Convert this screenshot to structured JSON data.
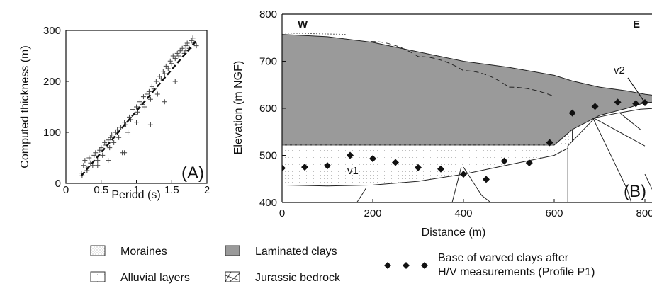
{
  "chart_data": [
    {
      "type": "scatter",
      "panel_label": "(A)",
      "xlabel": "Period (s)",
      "ylabel": "Computed thickness (m)",
      "xlim": [
        0,
        2
      ],
      "ylim": [
        0,
        300
      ],
      "xticks": [
        "0",
        "0.5",
        "1",
        "1.5",
        "2"
      ],
      "yticks": [
        "0",
        "100",
        "200",
        "300"
      ],
      "marker": "plus",
      "fit_line": {
        "style": "dashed",
        "x": [
          0.22,
          1.85
        ],
        "y": [
          15,
          280
        ]
      },
      "x": [
        0.22,
        0.23,
        0.25,
        0.27,
        0.3,
        0.33,
        0.35,
        0.38,
        0.4,
        0.42,
        0.45,
        0.48,
        0.5,
        0.52,
        0.55,
        0.57,
        0.6,
        0.62,
        0.63,
        0.65,
        0.68,
        0.7,
        0.73,
        0.75,
        0.78,
        0.8,
        0.83,
        0.85,
        0.88,
        0.9,
        0.92,
        0.95,
        0.98,
        1.0,
        1.02,
        1.05,
        1.08,
        1.1,
        1.12,
        1.15,
        1.18,
        1.2,
        1.22,
        1.25,
        1.28,
        1.3,
        1.33,
        1.35,
        1.38,
        1.4,
        1.42,
        1.45,
        1.48,
        1.5,
        1.52,
        1.55,
        1.58,
        1.6,
        1.62,
        1.65,
        1.68,
        1.7,
        1.72,
        1.75,
        1.78,
        1.8,
        1.82,
        1.85,
        0.3,
        0.45,
        0.6,
        0.83,
        1.0,
        1.2,
        1.4,
        1.55,
        1.7
      ],
      "y": [
        20,
        15,
        35,
        45,
        30,
        50,
        40,
        35,
        55,
        60,
        45,
        65,
        70,
        55,
        80,
        75,
        85,
        70,
        90,
        95,
        80,
        100,
        105,
        90,
        110,
        60,
        120,
        115,
        100,
        130,
        125,
        145,
        135,
        150,
        140,
        160,
        155,
        170,
        150,
        175,
        180,
        165,
        190,
        185,
        200,
        175,
        210,
        205,
        220,
        215,
        230,
        225,
        240,
        235,
        250,
        245,
        255,
        250,
        260,
        265,
        255,
        270,
        275,
        265,
        280,
        285,
        275,
        270,
        25,
        35,
        45,
        60,
        120,
        115,
        160,
        200,
        260
      ]
    },
    {
      "type": "area",
      "panel_label": "(B)",
      "xlabel": "Distance (m)",
      "ylabel": "Elevation (m NGF)",
      "xlim": [
        0,
        800
      ],
      "ylim": [
        400,
        800
      ],
      "xticks": [
        "0",
        "200",
        "400",
        "600",
        "800"
      ],
      "yticks": [
        "400",
        "500",
        "600",
        "700",
        "800"
      ],
      "corner_labels": {
        "left": "W",
        "right": "E"
      },
      "layer_labels": [
        "v1",
        "v2"
      ],
      "layers": [
        {
          "name": "Laminated clays",
          "x": [
            0,
            100,
            200,
            300,
            400,
            500,
            600,
            640,
            700,
            760,
            800
          ],
          "top": [
            757,
            752,
            740,
            720,
            700,
            687,
            670,
            658,
            645,
            637,
            630
          ],
          "bottom": [
            522,
            522,
            522,
            522,
            522,
            522,
            522,
            555,
            585,
            600,
            612
          ]
        },
        {
          "name": "Alluvial layers",
          "x": [
            0,
            100,
            200,
            300,
            400,
            500,
            600,
            640
          ],
          "top": [
            522,
            522,
            522,
            522,
            522,
            522,
            522,
            555
          ],
          "bottom": [
            437,
            435,
            437,
            445,
            460,
            480,
            500,
            520
          ]
        }
      ],
      "clay_boundary_dashed": {
        "x": [
          195,
          300,
          400,
          500,
          600
        ],
        "y": [
          742,
          710,
          680,
          645,
          625
        ]
      },
      "hv_points": {
        "x": [
          0,
          50,
          100,
          150,
          200,
          250,
          300,
          350,
          400,
          450,
          490,
          545,
          590,
          640,
          690,
          740,
          780,
          800
        ],
        "y": [
          473,
          475,
          478,
          500,
          493,
          485,
          474,
          471,
          460,
          449,
          488,
          484,
          527,
          590,
          604,
          613,
          610,
          612
        ]
      }
    }
  ],
  "legend": [
    {
      "key": "moraines",
      "label": "Moraines"
    },
    {
      "key": "laminated",
      "label": "Laminated clays"
    },
    {
      "key": "alluvial",
      "label": "Alluvial layers"
    },
    {
      "key": "jurassic",
      "label": "Jurassic bedrock"
    },
    {
      "key": "hv",
      "label_line1": "Base of varved clays after",
      "label_line2": "H/V measurements (Profile P1)"
    }
  ],
  "colors": {
    "clay": "#9a9a9a",
    "axis": "#111111",
    "points": "#111111"
  }
}
